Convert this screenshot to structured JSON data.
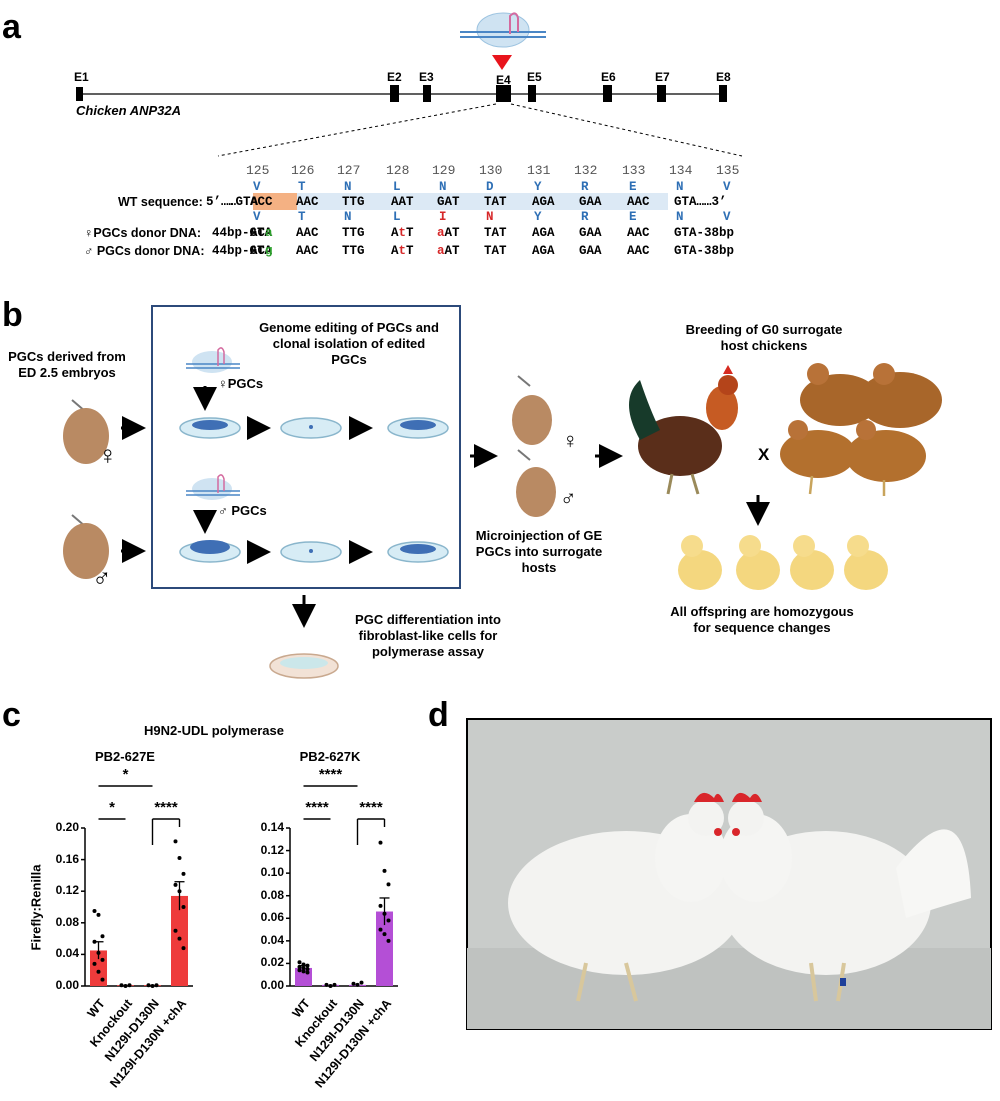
{
  "panels": {
    "a": "a",
    "b": "b",
    "c": "c",
    "d": "d"
  },
  "panel_a": {
    "exons": [
      "E1",
      "E2",
      "E3",
      "E4",
      "E5",
      "E6",
      "E7",
      "E8"
    ],
    "gene_name": "Chicken ANP32A",
    "positions": [
      "125",
      "126",
      "127",
      "128",
      "129",
      "130",
      "131",
      "132",
      "133",
      "134",
      "135"
    ],
    "wt_amino_acids": [
      "V",
      "T",
      "N",
      "L",
      "N",
      "D",
      "Y",
      "R",
      "E",
      "N",
      "V"
    ],
    "wt_label": "WT sequence:",
    "wt_prefix": "5’……",
    "wt_codons": [
      ".GTA",
      "ACC",
      "AAC",
      "TTG",
      "AAT",
      "GAT",
      "TAT",
      "AGA",
      "GAA",
      "AAC",
      "GTA……3’"
    ],
    "edit_amino_acids": [
      "V",
      "T",
      "N",
      "L",
      "I",
      "N",
      "Y",
      "R",
      "E",
      "N",
      "V"
    ],
    "female_label": "♀PGCs donor DNA:",
    "male_label": "♂ PGCs donor DNA:",
    "donor_codons_female": [
      "44bp-GTA",
      "ACa",
      "AAC",
      "TTG",
      "AtT",
      "aAT",
      "TAT",
      "AGA",
      "GAA",
      "AAC",
      "GTA-38bp"
    ],
    "donor_codons_male": [
      "44bp-GTA",
      "ACg",
      "AAC",
      "TTG",
      "AtT",
      "aAT",
      "TAT",
      "AGA",
      "GAA",
      "AAC",
      "GTA-38bp"
    ],
    "colors": {
      "amino_acid": "#2e6fb5",
      "mutation": "#d62728",
      "synonymous": "#2ca02c",
      "highlight_box": "#f4b183",
      "highlight_band": "#dce9f5"
    }
  },
  "panel_b": {
    "source_text": "PGCs derived from ED 2.5 embryos",
    "box_title": "Genome editing of PGCs and clonal isolation of edited PGCs",
    "female_pgcs": "♀PGCs",
    "male_pgcs": "♂ PGCs",
    "differentiation_text": "PGC differentiation into fibroblast-like cells for polymerase assay",
    "microinjection_text": "Microinjection of GE PGCs into surrogate hosts",
    "breeding_text": "Breeding of G0 surrogate host chickens",
    "cross_symbol": "X",
    "offspring_text": "All offspring are homozygous for sequence changes",
    "female_symbol": "♀",
    "male_symbol": "♂"
  },
  "panel_c": {
    "title": "H9N2-UDL polymerase",
    "ylabel": "Firefly:Renilla",
    "significance": {
      "left": [
        "*",
        "*",
        "****"
      ],
      "right": [
        "****",
        "****",
        "****"
      ]
    }
  },
  "chart_data": [
    {
      "type": "bar",
      "title": "PB2-627E",
      "ylabel": "Firefly:Renilla",
      "ylim": [
        0,
        0.2
      ],
      "yticks": [
        "0.00",
        "0.04",
        "0.08",
        "0.12",
        "0.16",
        "0.20"
      ],
      "categories": [
        "WT",
        "Knockout",
        "N129I-D130N",
        "N129I-D130N +chA"
      ],
      "values": [
        0.045,
        0.001,
        0.001,
        0.114
      ],
      "errors": [
        0.011,
        0.0,
        0.0,
        0.018
      ],
      "color": "#ee3b3b",
      "points": [
        [
          0.095,
          0.09,
          0.063,
          0.056,
          0.042,
          0.033,
          0.028,
          0.018,
          0.008
        ],
        [
          0.001,
          0.0,
          0.001
        ],
        [
          0.001,
          0.0,
          0.001
        ],
        [
          0.183,
          0.162,
          0.142,
          0.128,
          0.12,
          0.1,
          0.07,
          0.06,
          0.048
        ]
      ]
    },
    {
      "type": "bar",
      "title": "PB2-627K",
      "ylabel": "",
      "ylim": [
        0,
        0.14
      ],
      "yticks": [
        "0.00",
        "0.02",
        "0.04",
        "0.06",
        "0.08",
        "0.10",
        "0.12",
        "0.14"
      ],
      "categories": [
        "WT",
        "Knockout",
        "N129I-D130N",
        "N129I-D130N +chA"
      ],
      "values": [
        0.016,
        0.001,
        0.001,
        0.066
      ],
      "errors": [
        0.002,
        0.0,
        0.0,
        0.012
      ],
      "color": "#b44fd6",
      "points": [
        [
          0.021,
          0.019,
          0.018,
          0.017,
          0.016,
          0.015,
          0.014,
          0.013,
          0.012
        ],
        [
          0.001,
          0.0,
          0.001
        ],
        [
          0.002,
          0.001,
          0.003
        ],
        [
          0.127,
          0.102,
          0.09,
          0.071,
          0.064,
          0.058,
          0.05,
          0.046,
          0.04
        ]
      ]
    }
  ]
}
